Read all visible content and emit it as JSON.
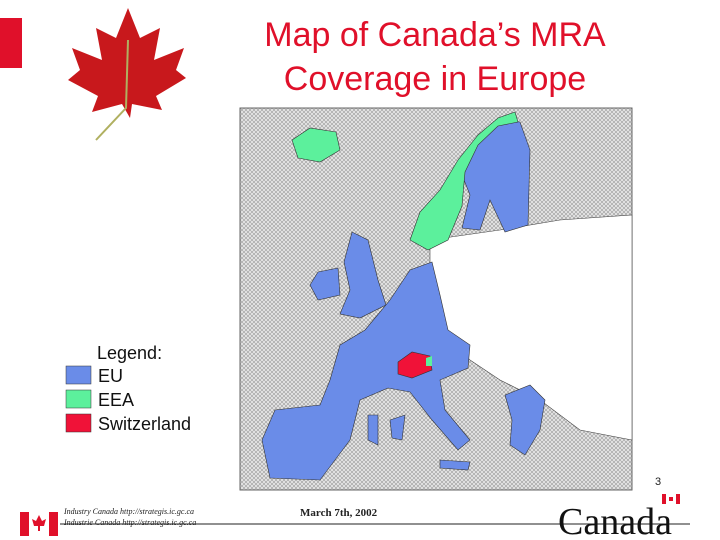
{
  "header": {
    "title_lines": [
      "Map of Canada’s MRA",
      "Coverage in Europe"
    ]
  },
  "legend": {
    "title": "Legend:",
    "items": [
      {
        "label": "EU",
        "color": "#6a8ce8"
      },
      {
        "label": "EEA",
        "color": "#5cf09c"
      },
      {
        "label": "Switzerland",
        "color": "#f01238"
      }
    ]
  },
  "page_number": "3",
  "footer": {
    "lines": [
      "Industry Canada   http://strategis.ic.gc.ca",
      "Industrie Canada   http://strategis.ic.gc.ca"
    ],
    "date": "March 7th, 2002",
    "wordmark": "Canada"
  }
}
